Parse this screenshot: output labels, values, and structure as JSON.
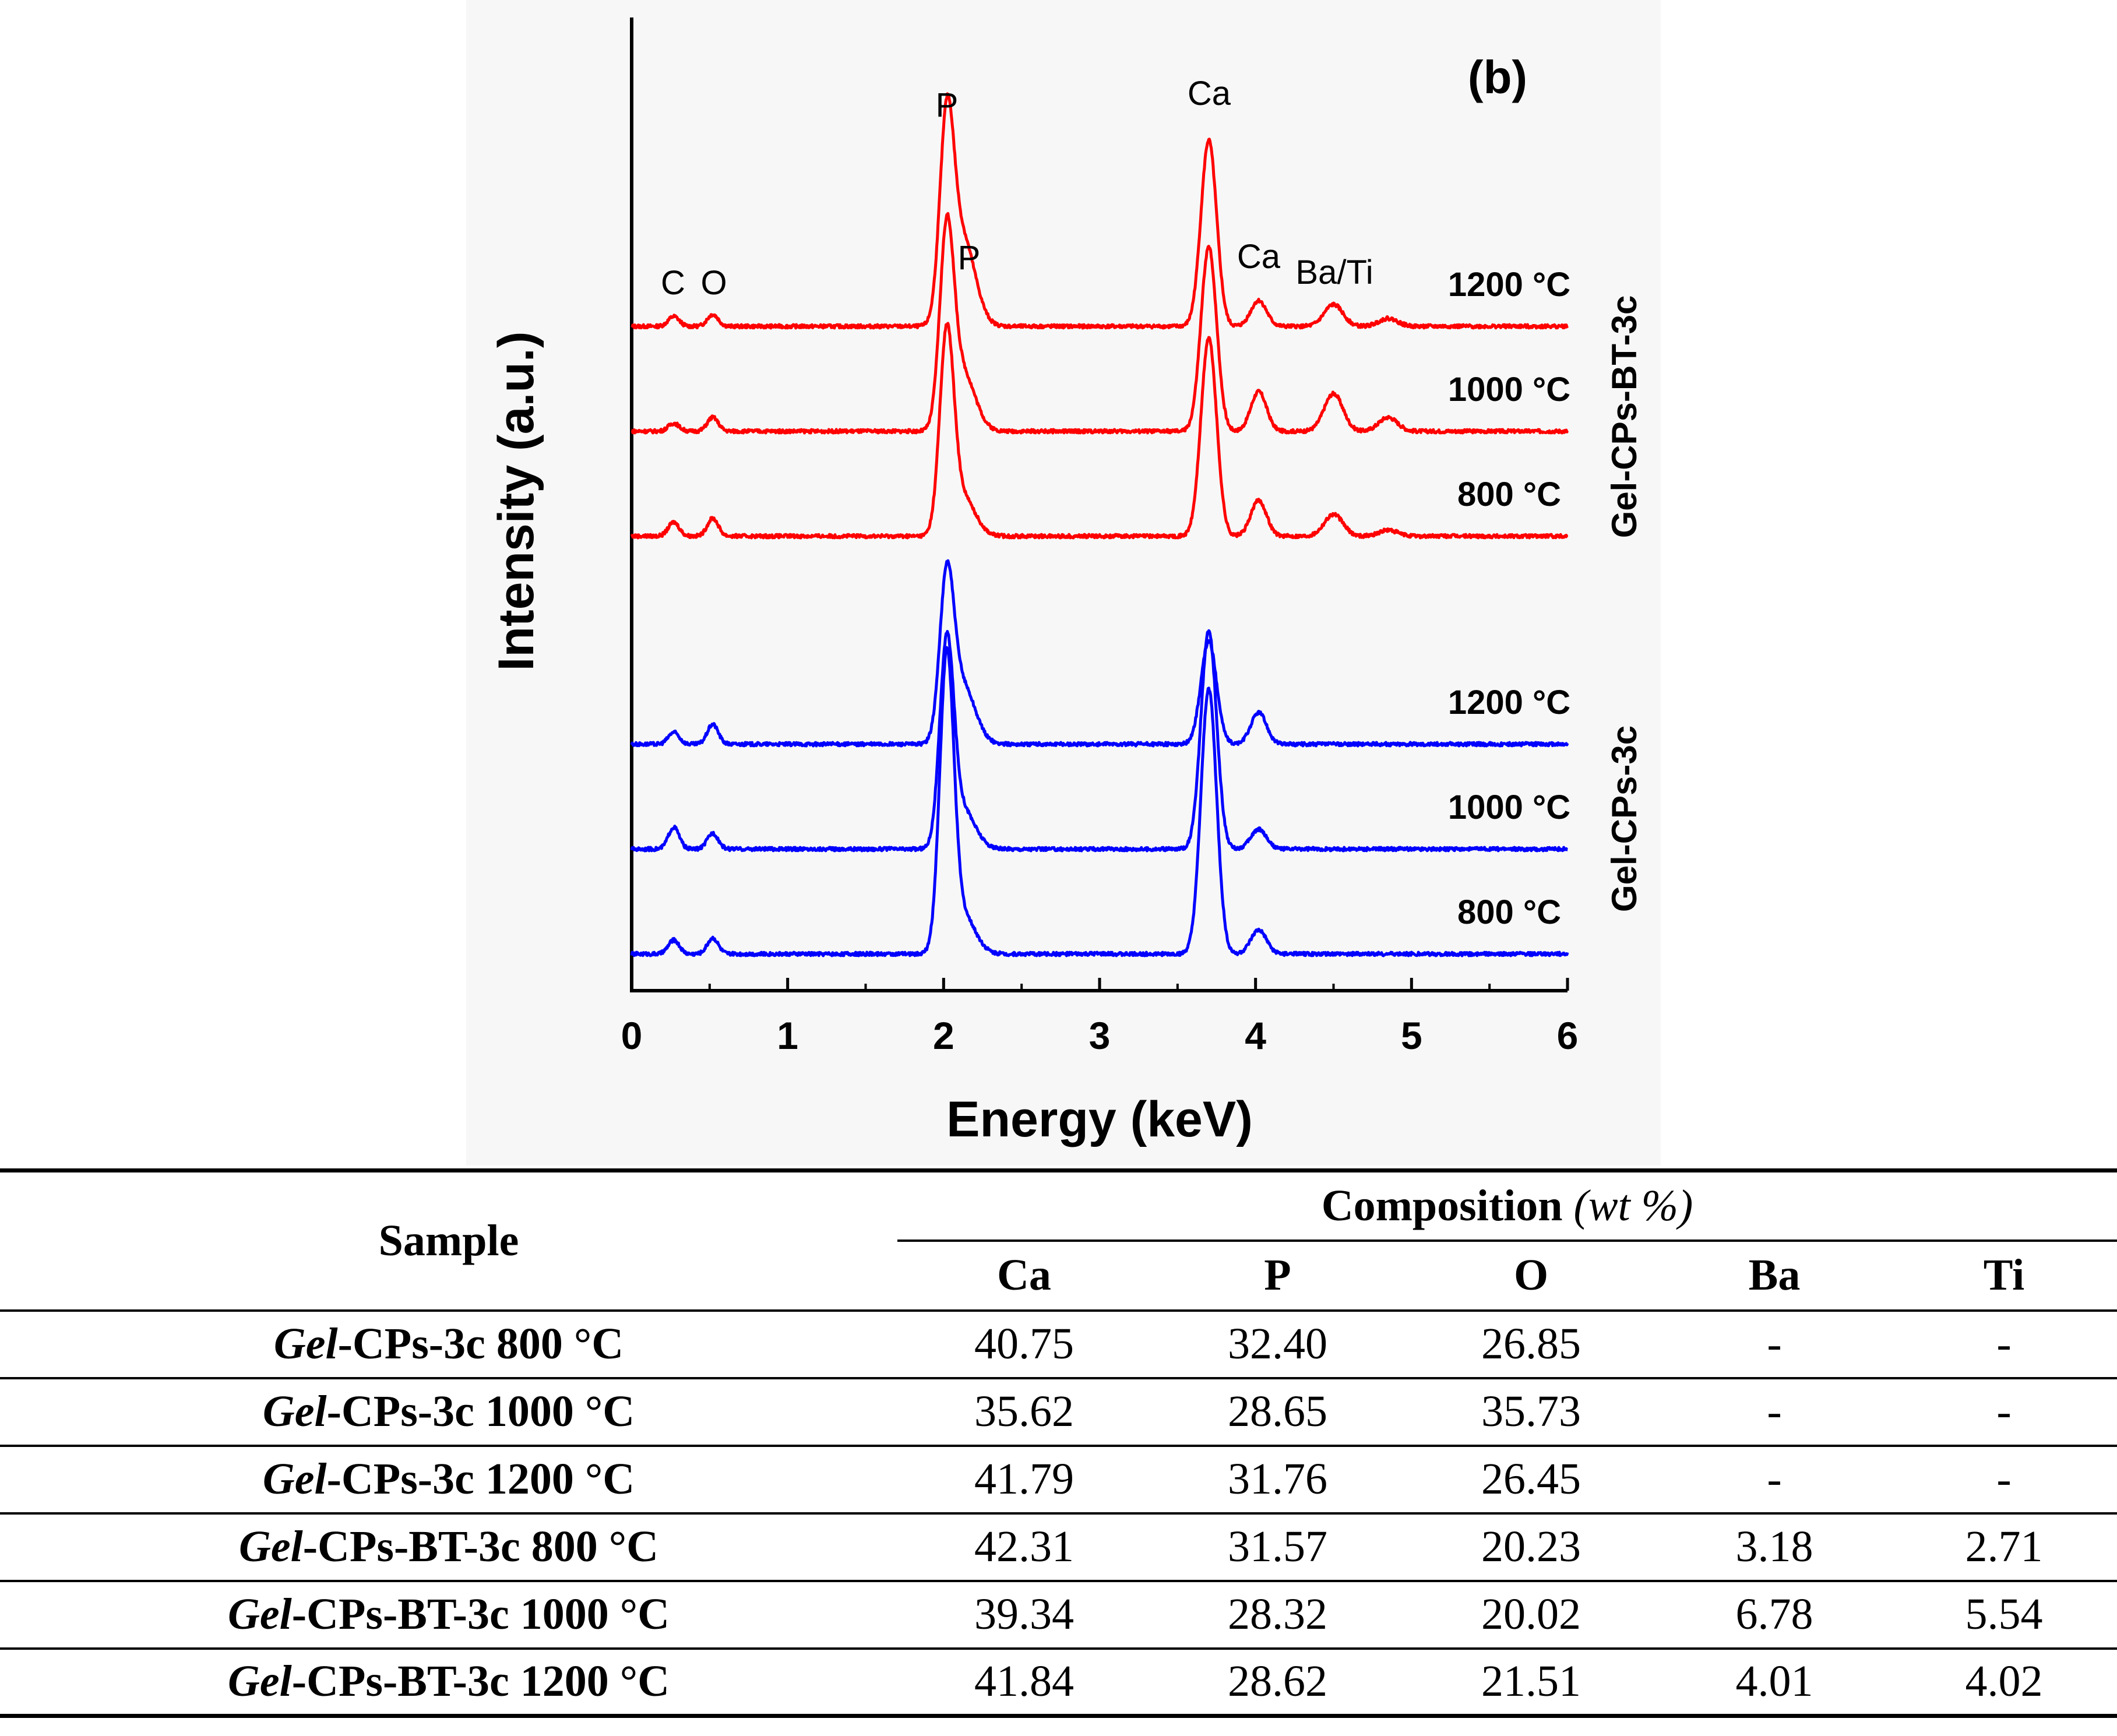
{
  "chart_data": {
    "type": "line",
    "panel_label": "(b)",
    "xlabel": "Energy (keV)",
    "ylabel": "Intensity (a.u.)",
    "xlim": [
      0,
      6
    ],
    "xticks": [
      "0",
      "1",
      "2",
      "3",
      "4",
      "5",
      "6"
    ],
    "group_labels": [
      "Gel-CPs-BT-3c",
      "Gel-CPs-3c"
    ],
    "peak_labels": [
      "C",
      "O",
      "P",
      "P",
      "Ca",
      "Ca",
      "Ba/Ti"
    ],
    "series": [
      {
        "name": "Gel-CPs-BT-3c 1200 °C",
        "label": "1200 °C",
        "group": "Gel-CPs-BT-3c",
        "color": "#ff0000",
        "peaks": [
          [
            0.27,
            0.05
          ],
          [
            0.52,
            0.06
          ],
          [
            2.02,
            0.95
          ],
          [
            2.12,
            0.45
          ],
          [
            3.7,
            0.94
          ],
          [
            4.02,
            0.13
          ],
          [
            4.5,
            0.11
          ],
          [
            4.85,
            0.04
          ]
        ]
      },
      {
        "name": "Gel-CPs-BT-3c 1000 °C",
        "label": "1000 °C",
        "group": "Gel-CPs-BT-3c",
        "color": "#ff0000",
        "peaks": [
          [
            0.27,
            0.04
          ],
          [
            0.52,
            0.07
          ],
          [
            2.02,
            0.95
          ],
          [
            2.12,
            0.3
          ],
          [
            3.7,
            0.93
          ],
          [
            4.02,
            0.2
          ],
          [
            4.5,
            0.19
          ],
          [
            4.85,
            0.07
          ]
        ]
      },
      {
        "name": "Gel-CPs-BT-3c 800 °C",
        "label": "800 °C",
        "group": "Gel-CPs-BT-3c",
        "color": "#ff0000",
        "peaks": [
          [
            0.27,
            0.07
          ],
          [
            0.52,
            0.09
          ],
          [
            2.02,
            0.98
          ],
          [
            2.12,
            0.2
          ],
          [
            3.7,
            1.0
          ],
          [
            4.02,
            0.18
          ],
          [
            4.5,
            0.11
          ],
          [
            4.85,
            0.03
          ]
        ]
      },
      {
        "name": "Gel-CPs-3c 1200 °C",
        "label": "1200 °C",
        "group": "Gel-CPs-3c",
        "color": "#0000ff",
        "peaks": [
          [
            0.27,
            0.06
          ],
          [
            0.52,
            0.1
          ],
          [
            2.02,
            0.78
          ],
          [
            2.12,
            0.3
          ],
          [
            3.7,
            0.52
          ],
          [
            4.02,
            0.16
          ]
        ]
      },
      {
        "name": "Gel-CPs-3c 1000 °C",
        "label": "1000 °C",
        "group": "Gel-CPs-3c",
        "color": "#0000ff",
        "peaks": [
          [
            0.27,
            0.11
          ],
          [
            0.52,
            0.08
          ],
          [
            2.02,
            1.0
          ],
          [
            2.12,
            0.2
          ],
          [
            3.7,
            1.1
          ],
          [
            4.02,
            0.1
          ]
        ]
      },
      {
        "name": "Gel-CPs-3c 800 °C",
        "label": "800 °C",
        "group": "Gel-CPs-3c",
        "color": "#0000ff",
        "peaks": [
          [
            0.27,
            0.07
          ],
          [
            0.52,
            0.08
          ],
          [
            2.02,
            1.45
          ],
          [
            2.12,
            0.2
          ],
          [
            3.7,
            1.34
          ],
          [
            4.02,
            0.12
          ]
        ]
      }
    ]
  },
  "table": {
    "sample_header": "Sample",
    "composition_header": "Composition",
    "composition_unit": "(wt %)",
    "columns": [
      "Ca",
      "P",
      "O",
      "Ba",
      "Ti"
    ],
    "rows": [
      {
        "prefix": "Gel",
        "sample": "-CPs-3c 800 °C",
        "values": [
          "40.75",
          "32.40",
          "26.85",
          "-",
          "-"
        ]
      },
      {
        "prefix": "Gel",
        "sample": "-CPs-3c 1000 °C",
        "values": [
          "35.62",
          "28.65",
          "35.73",
          "-",
          "-"
        ]
      },
      {
        "prefix": "Gel",
        "sample": "-CPs-3c 1200 °C",
        "values": [
          "41.79",
          "31.76",
          "26.45",
          "-",
          "-"
        ]
      },
      {
        "prefix": "Gel",
        "sample": "-CPs-BT-3c 800 °C",
        "values": [
          "42.31",
          "31.57",
          "20.23",
          "3.18",
          "2.71"
        ]
      },
      {
        "prefix": "Gel",
        "sample": "-CPs-BT-3c 1000 °C",
        "values": [
          "39.34",
          "28.32",
          "20.02",
          "6.78",
          "5.54"
        ]
      },
      {
        "prefix": "Gel",
        "sample": "-CPs-BT-3c 1200 °C",
        "values": [
          "41.84",
          "28.62",
          "21.51",
          "4.01",
          "4.02"
        ]
      }
    ]
  }
}
